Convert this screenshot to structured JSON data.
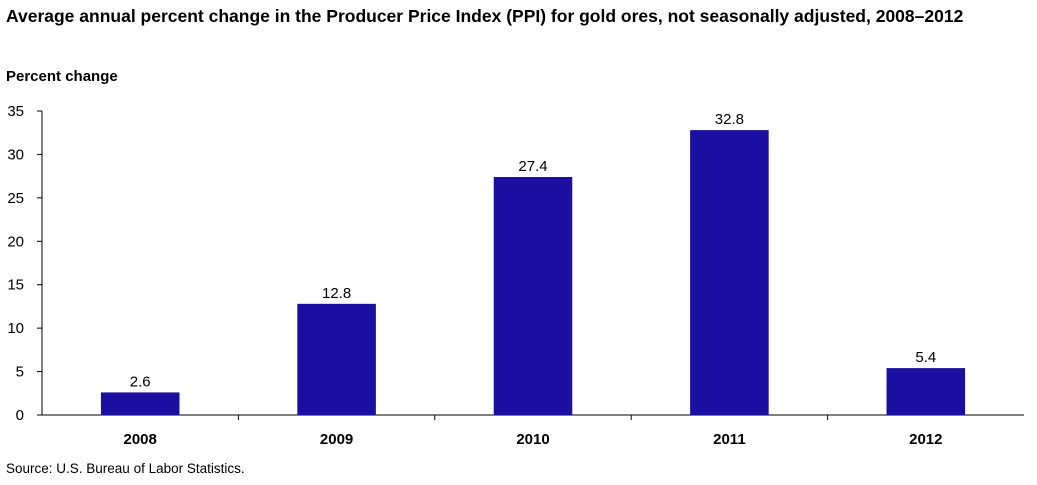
{
  "title": "Average annual percent change in the Producer Price Index (PPI) for gold ores, not seasonally adjusted, 2008–2012",
  "source": "Source: U.S. Bureau of Labor Statistics.",
  "colors": {
    "bar": "#1a0fa0",
    "axis": "#000000"
  },
  "chart_data": {
    "type": "bar",
    "title": "Average annual percent change in the Producer Price Index (PPI) for gold ores, not seasonally adjusted, 2008–2012",
    "xlabel": "",
    "ylabel": "Percent change",
    "categories": [
      "2008",
      "2009",
      "2010",
      "2011",
      "2012"
    ],
    "values": [
      2.6,
      12.8,
      27.4,
      32.8,
      5.4
    ],
    "data_labels": [
      "2.6",
      "12.8",
      "27.4",
      "32.8",
      "5.4"
    ],
    "ylim": [
      0,
      35
    ],
    "yticks": [
      0,
      5,
      10,
      15,
      20,
      25,
      30,
      35
    ],
    "grid": false,
    "legend": "none"
  }
}
